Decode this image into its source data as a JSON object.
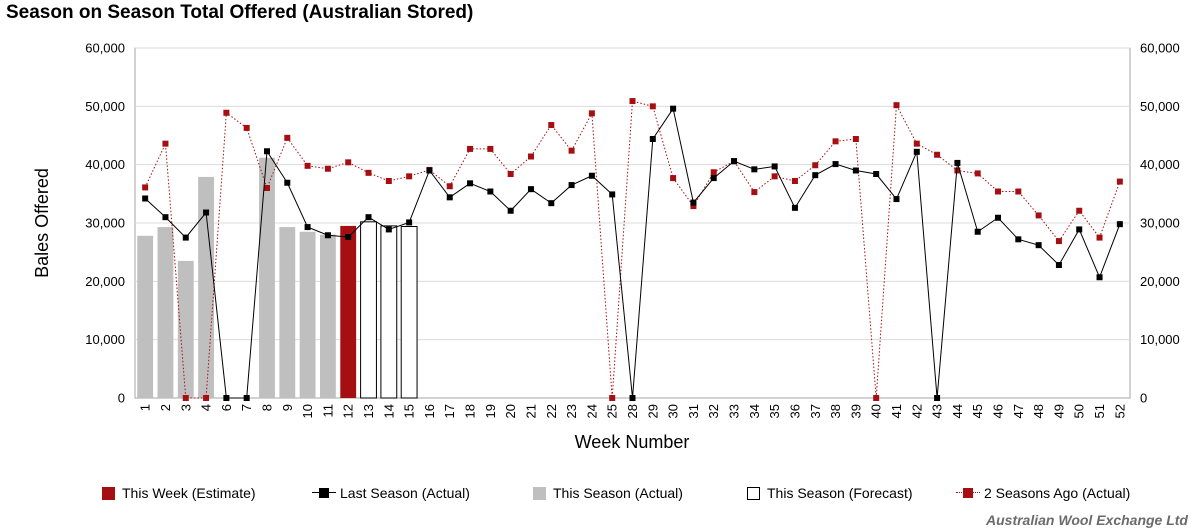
{
  "title": "Season on Season Total Offered (Australian Stored)",
  "footer": "Australian Wool Exchange Ltd",
  "colors": {
    "this_week": "#a60f12",
    "last_season": "#000000",
    "this_season_actual": "#bfbfbf",
    "this_season_forecast": "#ffffff",
    "two_seasons_ago": "#a60f12",
    "grid": "#dcdcdc"
  },
  "legend": [
    {
      "label": "This Week (Estimate)",
      "style": "bar-red"
    },
    {
      "label": "Last Season (Actual)",
      "style": "line-black"
    },
    {
      "label": "This Season (Actual)",
      "style": "bar-grey"
    },
    {
      "label": "This Season (Forecast)",
      "style": "bar-outline"
    },
    {
      "label": "2 Seasons Ago (Actual)",
      "style": "line-red-dotted"
    }
  ],
  "chart_data": {
    "type": "bar",
    "title": "Season on Season Total Offered (Australian Stored)",
    "xlabel": "Week Number",
    "ylabel": "Bales Offered",
    "ylim": [
      0,
      60000
    ],
    "y_ticks": [
      "0",
      "10,000",
      "20,000",
      "30,000",
      "40,000",
      "50,000",
      "60,000"
    ],
    "secondary_y_ticks": [
      "0",
      "10,000",
      "20,000",
      "30,000",
      "40,000",
      "50,000",
      "60,000"
    ],
    "grid": true,
    "legend_position": "bottom",
    "categories": [
      "1",
      "2",
      "3",
      "4",
      "6",
      "7",
      "8",
      "9",
      "10",
      "11",
      "12",
      "13",
      "14",
      "15",
      "16",
      "17",
      "18",
      "19",
      "20",
      "21",
      "22",
      "23",
      "24",
      "25",
      "28",
      "29",
      "30",
      "31",
      "32",
      "33",
      "34",
      "35",
      "36",
      "37",
      "38",
      "39",
      "40",
      "41",
      "42",
      "43",
      "44",
      "45",
      "46",
      "47",
      "48",
      "49",
      "50",
      "51",
      "52"
    ],
    "series": [
      {
        "name": "This Season (Actual)",
        "type": "bar",
        "values": [
          27800,
          29300,
          23500,
          37900,
          null,
          null,
          41200,
          29300,
          28500,
          28000,
          null,
          null,
          null,
          null,
          null,
          null,
          null,
          null,
          null,
          null,
          null,
          null,
          null,
          null,
          null,
          null,
          null,
          null,
          null,
          null,
          null,
          null,
          null,
          null,
          null,
          null,
          null,
          null,
          null,
          null,
          null,
          null,
          null,
          null,
          null,
          null,
          null,
          null,
          null
        ]
      },
      {
        "name": "This Week (Estimate)",
        "type": "bar",
        "values": [
          null,
          null,
          null,
          null,
          null,
          null,
          null,
          null,
          null,
          null,
          29500,
          null,
          null,
          null,
          null,
          null,
          null,
          null,
          null,
          null,
          null,
          null,
          null,
          null,
          null,
          null,
          null,
          null,
          null,
          null,
          null,
          null,
          null,
          null,
          null,
          null,
          null,
          null,
          null,
          null,
          null,
          null,
          null,
          null,
          null,
          null,
          null,
          null,
          null
        ]
      },
      {
        "name": "This Season (Forecast)",
        "type": "bar",
        "values": [
          null,
          null,
          null,
          null,
          null,
          null,
          null,
          null,
          null,
          null,
          null,
          30200,
          29500,
          29400,
          null,
          null,
          null,
          null,
          null,
          null,
          null,
          null,
          null,
          null,
          null,
          null,
          null,
          null,
          null,
          null,
          null,
          null,
          null,
          null,
          null,
          null,
          null,
          null,
          null,
          null,
          null,
          null,
          null,
          null,
          null,
          null,
          null,
          null,
          null
        ]
      },
      {
        "name": "Last Season (Actual)",
        "type": "line",
        "values": [
          34200,
          31000,
          27500,
          31800,
          0,
          0,
          42300,
          36900,
          29300,
          27900,
          27600,
          31000,
          28900,
          30100,
          39000,
          34400,
          36800,
          35400,
          32100,
          35800,
          33400,
          36500,
          38100,
          34900,
          0,
          44400,
          49600,
          33500,
          37700,
          40600,
          39200,
          39700,
          32600,
          38200,
          40100,
          39000,
          38400,
          34100,
          42200,
          0,
          40300,
          28500,
          30900,
          27200,
          26200,
          22800,
          28900,
          20700,
          29800
        ]
      },
      {
        "name": "2 Seasons Ago (Actual)",
        "type": "line",
        "values": [
          36100,
          43600,
          0,
          0,
          48900,
          46300,
          36000,
          44600,
          39800,
          39300,
          40400,
          38600,
          37200,
          38000,
          39100,
          36300,
          42700,
          42700,
          38400,
          41400,
          46800,
          42400,
          48800,
          0,
          50900,
          50000,
          37700,
          32900,
          38700,
          40600,
          35300,
          38000,
          37200,
          39900,
          44000,
          44400,
          0,
          50200,
          43600,
          41700,
          39000,
          38500,
          35400,
          35400,
          31300,
          26900,
          32100,
          27500,
          37100
        ]
      }
    ]
  }
}
